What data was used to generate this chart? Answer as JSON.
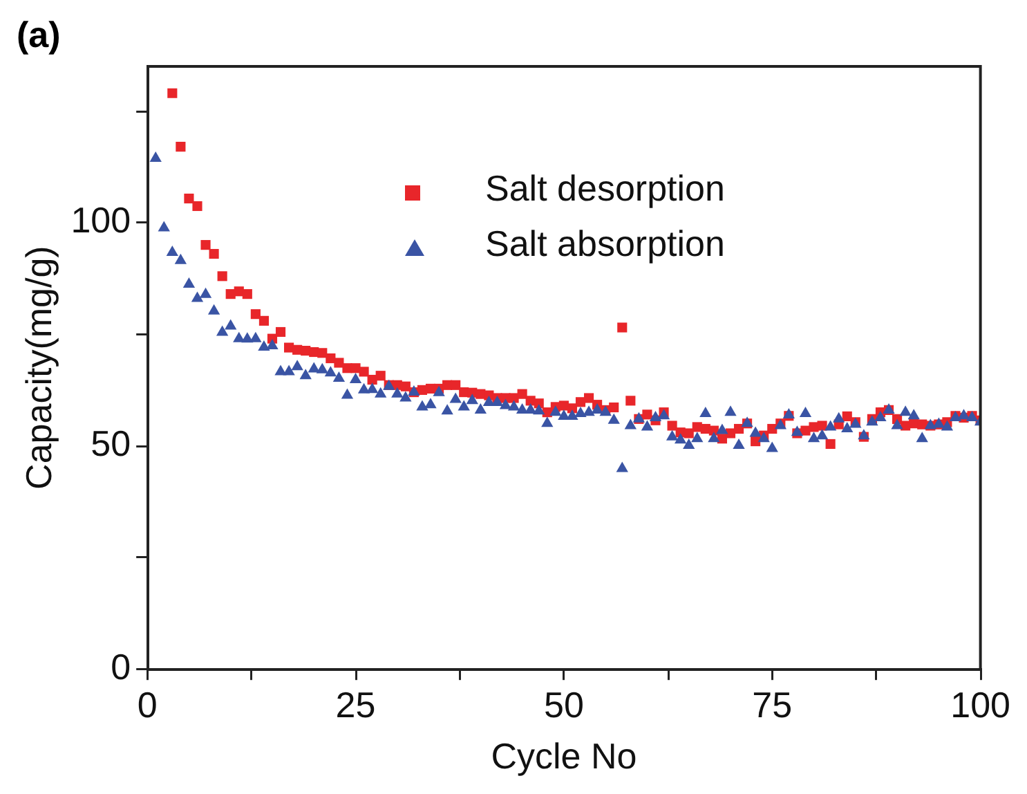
{
  "chart_data": {
    "type": "scatter",
    "xlabel": "Cycle No",
    "ylabel": "Capacity(mg/g)",
    "annotations": [
      "(a)"
    ],
    "xlim": [
      0,
      100
    ],
    "xticks": [
      0,
      {
        "value": 12.5,
        "label": null
      },
      25,
      {
        "value": 37.5,
        "label": null
      },
      50,
      {
        "value": 62.5,
        "label": null
      },
      75,
      {
        "value": 87.5,
        "label": null
      },
      100
    ],
    "ylim": [
      0,
      135
    ],
    "yticks": [
      0,
      {
        "value": 25,
        "label": null
      },
      50,
      {
        "value": 75,
        "label": null
      },
      100,
      {
        "value": 125,
        "label": null
      }
    ],
    "grid": false,
    "legend": "top",
    "series": [
      {
        "name": "Salt desorption",
        "color": "#e8262a",
        "marker": "square",
        "x": [
          3,
          4,
          5,
          6,
          7,
          8,
          9,
          10,
          11,
          12,
          13,
          14,
          15,
          16,
          17,
          18,
          19,
          20,
          21,
          22,
          23,
          24,
          25,
          26,
          27,
          28,
          29,
          30,
          31,
          32,
          33,
          34,
          35,
          36,
          37,
          38,
          39,
          40,
          41,
          42,
          43,
          44,
          45,
          46,
          47,
          48,
          49,
          50,
          51,
          52,
          53,
          54,
          55,
          56,
          57,
          58,
          59,
          60,
          61,
          62,
          63,
          64,
          65,
          66,
          67,
          68,
          69,
          70,
          71,
          72,
          73,
          74,
          75,
          76,
          77,
          78,
          79,
          80,
          81,
          82,
          83,
          84,
          85,
          86,
          87,
          88,
          89,
          90,
          91,
          92,
          93,
          94,
          95,
          96,
          97,
          98,
          99,
          100
        ],
        "values": [
          129,
          117,
          105.4,
          103.7,
          95,
          93,
          88,
          84,
          84.6,
          84,
          79.5,
          78,
          74,
          75.5,
          72,
          71.5,
          71.3,
          71,
          70.8,
          69.6,
          68.6,
          67.4,
          67.4,
          66.6,
          64.8,
          65.7,
          63.6,
          63.6,
          63.3,
          62,
          62.5,
          62.8,
          62.8,
          63.6,
          63.6,
          62,
          61.9,
          61.6,
          61.3,
          60.7,
          60.7,
          60.7,
          61.6,
          60.1,
          59.5,
          57.5,
          58.7,
          59,
          58.4,
          59.8,
          60.7,
          59.2,
          58,
          58.6,
          76.5,
          60.1,
          56,
          57,
          55.7,
          57.5,
          54.5,
          53,
          52.8,
          54.2,
          53.8,
          53.4,
          51.6,
          52.8,
          53.8,
          55,
          51,
          52.3,
          53.8,
          55,
          56.7,
          52.8,
          53.4,
          54.2,
          54.5,
          50.4,
          54.8,
          56.6,
          55.3,
          52,
          56,
          57.5,
          58,
          56,
          54.5,
          55,
          54.8,
          54.5,
          54.8,
          55.3,
          56.7,
          56.3,
          56.7,
          55.7
        ]
      },
      {
        "name": "Salt absorption",
        "color": "#3a54a4",
        "marker": "triangle",
        "x": [
          1,
          2,
          3,
          4,
          5,
          6,
          7,
          8,
          9,
          10,
          11,
          12,
          13,
          14,
          15,
          16,
          17,
          18,
          19,
          20,
          21,
          22,
          23,
          24,
          25,
          26,
          27,
          28,
          29,
          30,
          31,
          32,
          33,
          34,
          35,
          36,
          37,
          38,
          39,
          40,
          41,
          42,
          43,
          44,
          45,
          46,
          47,
          48,
          49,
          50,
          51,
          52,
          53,
          54,
          55,
          56,
          57,
          58,
          59,
          60,
          61,
          62,
          63,
          64,
          65,
          66,
          67,
          68,
          69,
          70,
          71,
          72,
          73,
          74,
          75,
          76,
          77,
          78,
          79,
          80,
          81,
          82,
          83,
          84,
          85,
          86,
          87,
          88,
          89,
          90,
          91,
          92,
          93,
          94,
          95,
          96,
          97,
          98,
          99,
          100
        ],
        "values": [
          114.4,
          98.8,
          93.3,
          91.5,
          86.2,
          83,
          83.9,
          80.2,
          75.4,
          76.8,
          74,
          73.9,
          74,
          72.1,
          72.4,
          66.6,
          66.6,
          67.7,
          65.7,
          67.2,
          67,
          66.3,
          65.1,
          61.3,
          64.8,
          62.5,
          62.6,
          61.6,
          63.3,
          61.6,
          60.7,
          62,
          58.7,
          59.2,
          61.9,
          57.8,
          60.4,
          58.7,
          60.1,
          58,
          59.7,
          59.7,
          59,
          58.7,
          58,
          58,
          57.8,
          55,
          57.5,
          56.6,
          56.6,
          57.2,
          57.5,
          58,
          57.5,
          55.7,
          44.9,
          54.5,
          56,
          54.2,
          56.3,
          56.7,
          52,
          51.3,
          50.1,
          51.6,
          57.2,
          51.6,
          53.4,
          57.5,
          50.1,
          55,
          52.8,
          51.6,
          49.4,
          54.5,
          56.9,
          53,
          57.2,
          51.6,
          52.2,
          54.2,
          56,
          53.8,
          54.8,
          52.2,
          55.3,
          56.3,
          58,
          54.5,
          57.5,
          56.7,
          51.6,
          54.5,
          54.8,
          54.2,
          56.3,
          56.7,
          56.3,
          55.3
        ]
      }
    ]
  }
}
